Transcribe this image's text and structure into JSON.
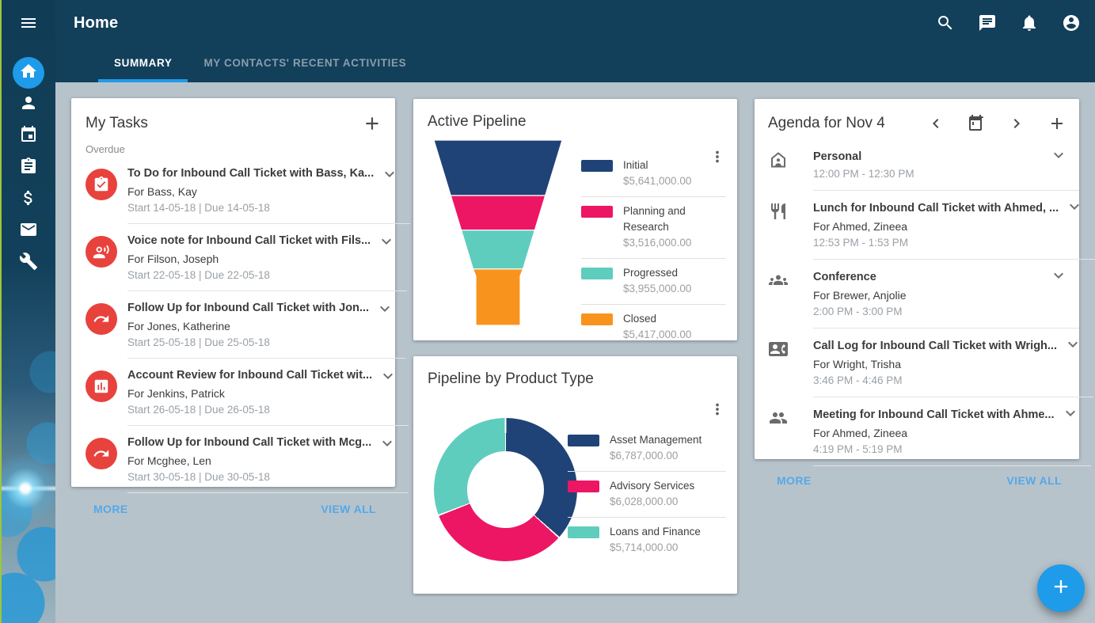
{
  "colors": {
    "accent_blue": "#1E9BE9",
    "link_blue": "#55A8E8",
    "task_icon_red": "#E8423D",
    "header_dark": "#123F5A",
    "content_bg": "#B7C3CB",
    "legend_divider": "#E0E0E0"
  },
  "topbar": {
    "title": "Home",
    "icons": [
      "menu-icon",
      "search-icon",
      "chat-icon",
      "notifications-icon",
      "account-icon"
    ]
  },
  "tabs": [
    {
      "label": "SUMMARY",
      "active": true
    },
    {
      "label": "MY CONTACTS' RECENT ACTIVITIES",
      "active": false
    }
  ],
  "sidebar": {
    "items": [
      {
        "icon": "home",
        "active": true
      },
      {
        "icon": "contacts-person",
        "active": false
      },
      {
        "icon": "calendar",
        "active": false
      },
      {
        "icon": "activities-clipboard",
        "active": false
      },
      {
        "icon": "sales-dollar",
        "active": false
      },
      {
        "icon": "email",
        "active": false
      },
      {
        "icon": "tools-wrench",
        "active": false
      }
    ]
  },
  "my_tasks": {
    "title": "My Tasks",
    "section_label": "Overdue",
    "more_label": "MORE",
    "view_all_label": "VIEW ALL",
    "tasks": [
      {
        "icon": "todo-check",
        "title": "To Do for Inbound Call Ticket with Bass, Ka...",
        "for": "For Bass, Kay",
        "dates": "Start 14-05-18 | Due 14-05-18"
      },
      {
        "icon": "voice-note",
        "title": "Voice note for Inbound Call Ticket with Fils...",
        "for": "For Filson, Joseph",
        "dates": "Start 22-05-18 | Due 22-05-18"
      },
      {
        "icon": "follow-up-arrow",
        "title": "Follow Up for Inbound Call Ticket with Jon...",
        "for": "For Jones, Katherine",
        "dates": "Start 25-05-18 | Due 25-05-18"
      },
      {
        "icon": "account-review-chart",
        "title": "Account Review for Inbound Call Ticket wit...",
        "for": "For Jenkins, Patrick",
        "dates": "Start 26-05-18 | Due 26-05-18"
      },
      {
        "icon": "follow-up-arrow",
        "title": "Follow Up for Inbound Call Ticket with Mcg...",
        "for": "For Mcghee, Len",
        "dates": "Start 30-05-18 | Due 30-05-18"
      }
    ]
  },
  "agenda": {
    "title": "Agenda for Nov 4",
    "more_label": "MORE",
    "view_all_label": "VIEW ALL",
    "items": [
      {
        "icon": "personal-home",
        "title": "Personal",
        "time": "12:00 PM - 12:30 PM"
      },
      {
        "icon": "lunch-restaurant",
        "title": "Lunch for Inbound Call Ticket with Ahmed, ...",
        "for": "For Ahmed, Zineea",
        "time": "12:53 PM - 1:53 PM"
      },
      {
        "icon": "conference-groups",
        "title": "Conference",
        "for": "For Brewer, Anjolie",
        "time": "2:00 PM - 3:00 PM"
      },
      {
        "icon": "call-log-contact-phone",
        "title": "Call Log for Inbound Call Ticket with Wrigh...",
        "for": "For Wright, Trisha",
        "time": "3:46 PM - 4:46 PM"
      },
      {
        "icon": "meeting-people",
        "title": "Meeting for Inbound Call Ticket with Ahme...",
        "for": "For Ahmed, Zineea",
        "time": "4:19 PM - 5:19 PM"
      }
    ]
  },
  "chart_data": [
    {
      "type": "funnel",
      "title": "Active Pipeline",
      "categories": [
        "Initial",
        "Planning and Research",
        "Progressed",
        "Closed"
      ],
      "values": [
        5641000,
        3516000,
        3955000,
        5417000
      ],
      "display_values": [
        "$5,641,000.00",
        "$3,516,000.00",
        "$3,955,000.00",
        "$5,417,000.00"
      ],
      "colors": [
        "#1F4377",
        "#ED1664",
        "#5FCDBD",
        "#F8941D"
      ],
      "legend_position": "right"
    },
    {
      "type": "donut",
      "title": "Pipeline by Product Type",
      "categories": [
        "Asset Management",
        "Advisory Services",
        "Loans and Finance"
      ],
      "values": [
        6787000,
        6028000,
        5714000
      ],
      "display_values": [
        "$6,787,000.00",
        "$6,028,000.00",
        "$5,714,000.00"
      ],
      "colors": [
        "#1F4377",
        "#ED1664",
        "#5FCDBD"
      ],
      "legend_position": "right"
    }
  ],
  "fab": {
    "icon": "plus"
  }
}
